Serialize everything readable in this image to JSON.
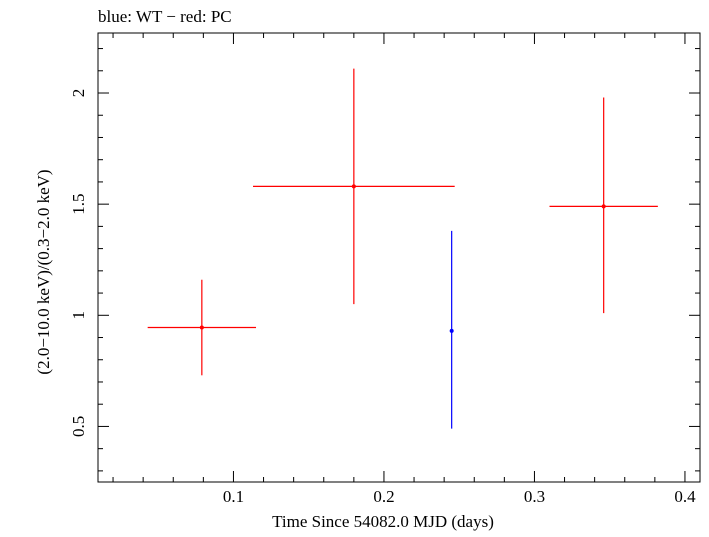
{
  "chart_data": {
    "type": "scatter",
    "title": "blue: WT − red: PC",
    "xlabel": "Time Since 54082.0 MJD (days)",
    "ylabel": "(2.0−10.0 keV)/(0.3−2.0 keV)",
    "xlim": [
      0.01,
      0.41
    ],
    "ylim": [
      0.25,
      2.27
    ],
    "x_ticks": [
      {
        "value": 0.1,
        "label": "0.1"
      },
      {
        "value": 0.2,
        "label": "0.2"
      },
      {
        "value": 0.3,
        "label": "0.3"
      },
      {
        "value": 0.4,
        "label": "0.4"
      }
    ],
    "y_ticks": [
      {
        "value": 0.5,
        "label": "0.5"
      },
      {
        "value": 1.0,
        "label": "1"
      },
      {
        "value": 1.5,
        "label": "1.5"
      },
      {
        "value": 2.0,
        "label": "2"
      }
    ],
    "x_minor_step": 0.02,
    "y_minor_step": 0.1,
    "grid": false,
    "series": [
      {
        "mode": "WT",
        "color": "#0000ff",
        "points": [
          {
            "x": 0.245,
            "xerr": 0.0,
            "y": 0.93,
            "y_low": 0.49,
            "y_high": 1.38
          }
        ]
      },
      {
        "mode": "PC",
        "color": "#ff0000",
        "points": [
          {
            "x": 0.079,
            "xerr": 0.036,
            "y": 0.945,
            "y_low": 0.73,
            "y_high": 1.16
          },
          {
            "x": 0.18,
            "xerr": 0.067,
            "y": 1.58,
            "y_low": 1.05,
            "y_high": 2.11
          },
          {
            "x": 0.346,
            "xerr": 0.036,
            "y": 1.49,
            "y_low": 1.01,
            "y_high": 1.98
          }
        ]
      }
    ]
  }
}
